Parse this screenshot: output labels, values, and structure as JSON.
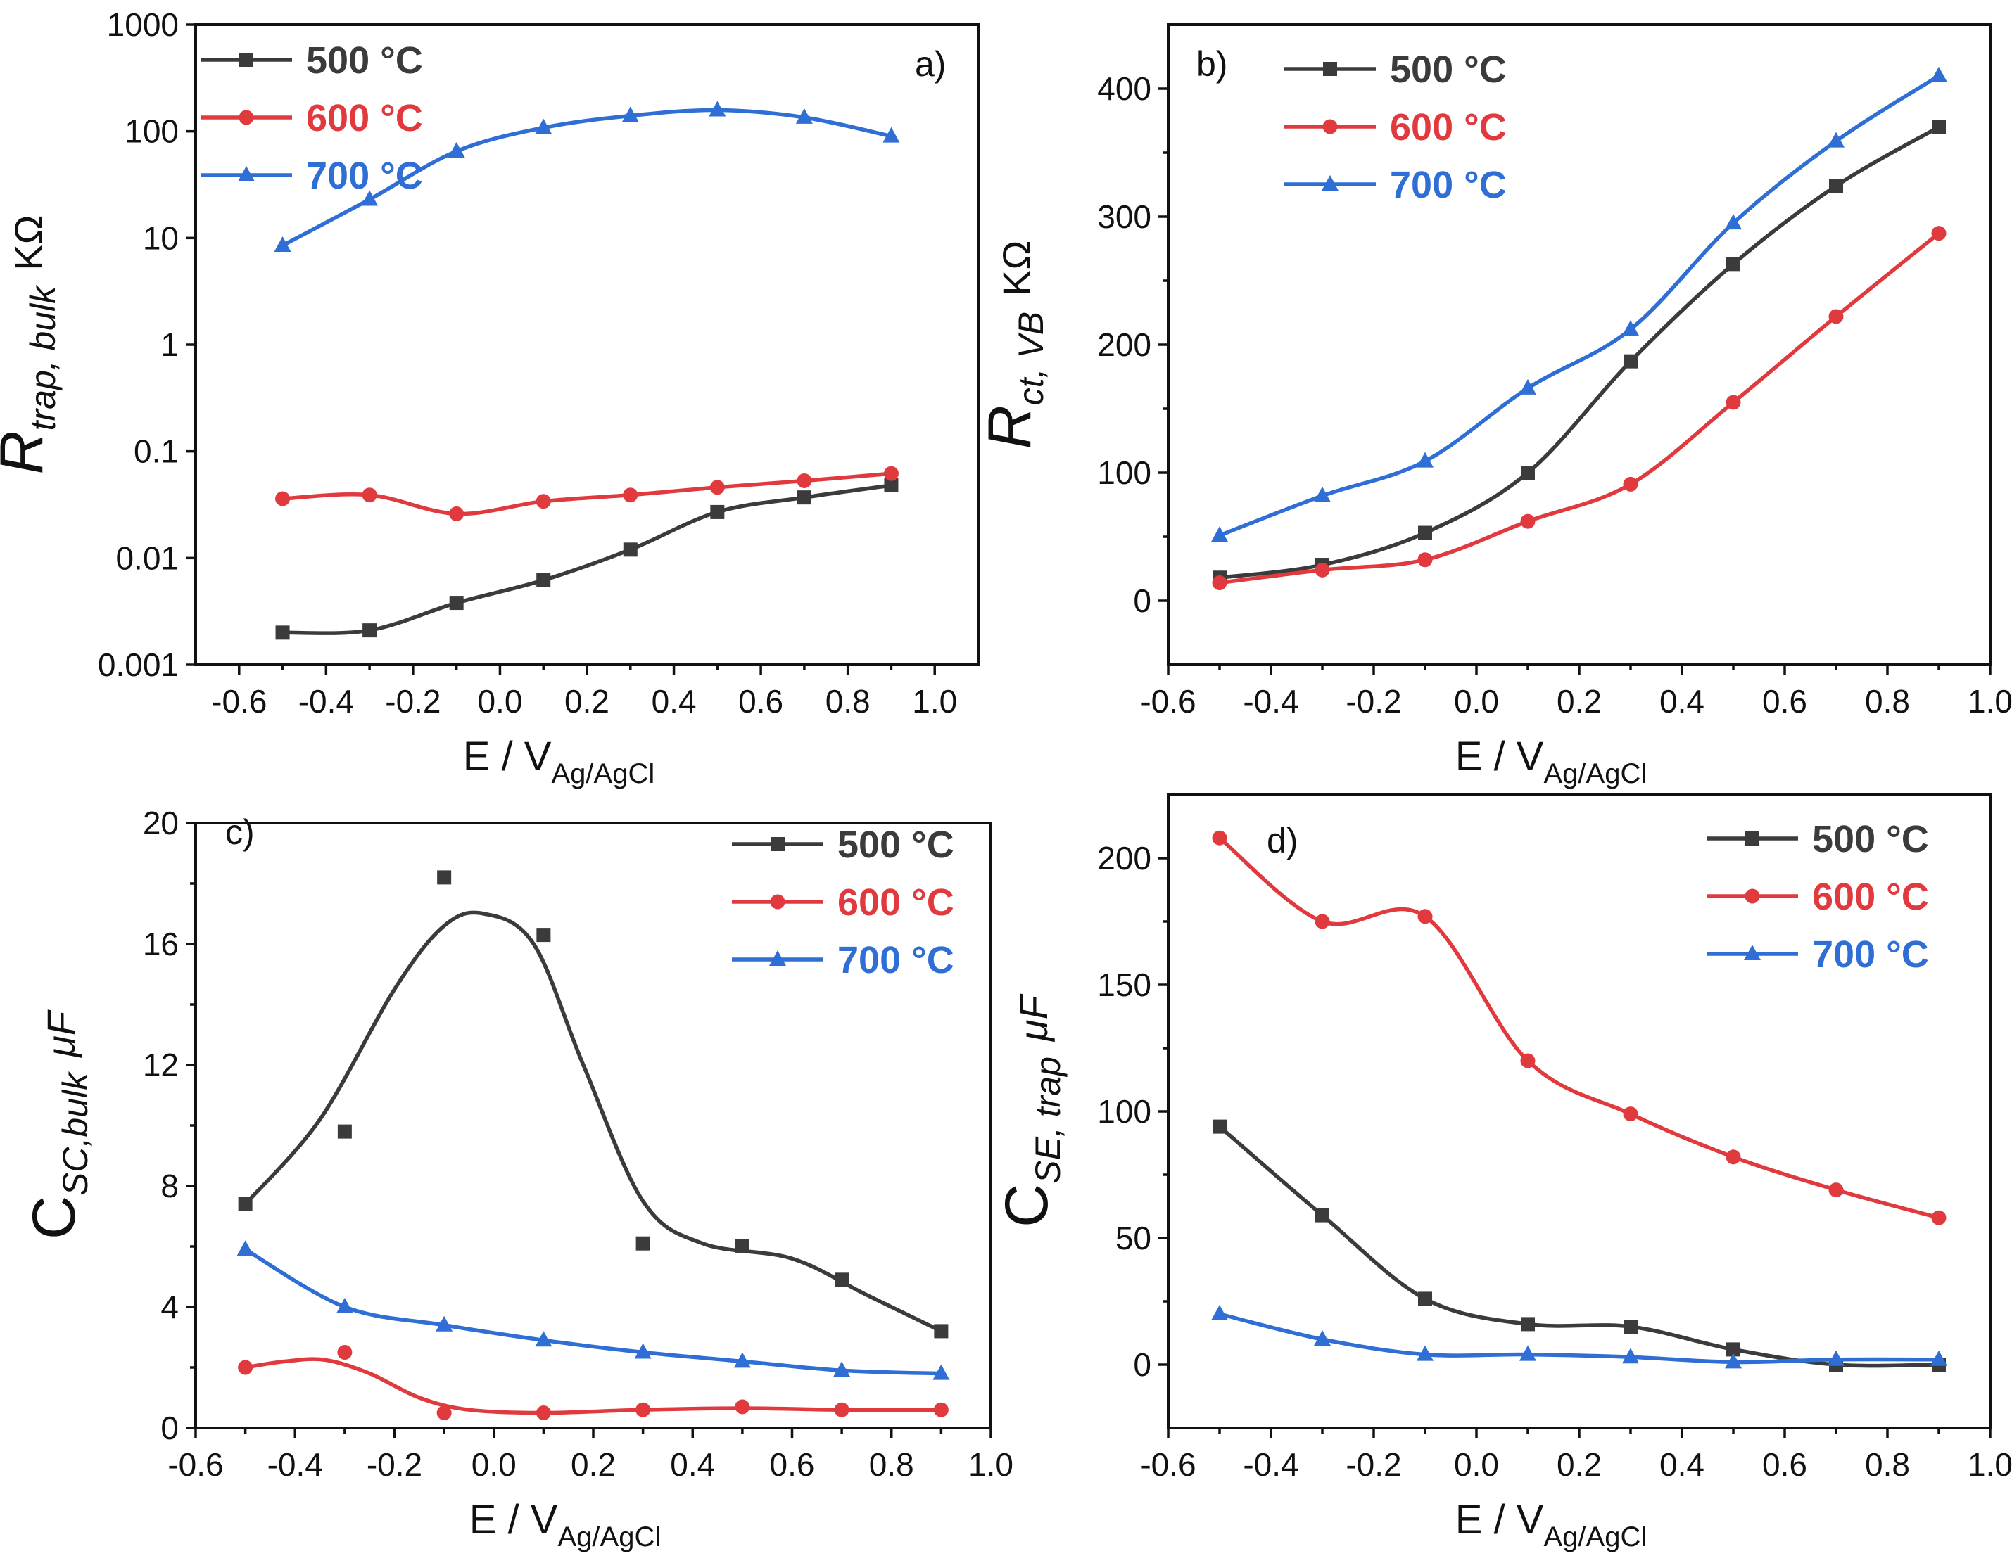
{
  "colors": {
    "s500": "#3b3b3b",
    "s600": "#e03a3e",
    "s700": "#2f6ed4",
    "axis": "#111111"
  },
  "legend_labels": {
    "s500": "500 °C",
    "s600": "600 °C",
    "s700": "700 °C"
  },
  "x_axis_label": {
    "main": "E / V",
    "sub": "Ag/AgCl"
  },
  "chart_data": [
    {
      "type": "line",
      "panel": "a)",
      "yscale": "log",
      "ylabel": {
        "main": "R",
        "sub": "trap, bulk",
        "unit": "KΩ"
      },
      "xlabel": "E / VAg/AgCl",
      "xlim": [
        -0.7,
        1.1
      ],
      "ylim": [
        0.001,
        1000
      ],
      "x_ticks": [
        -0.6,
        -0.4,
        -0.2,
        0.0,
        0.2,
        0.4,
        0.6,
        0.8,
        1.0
      ],
      "x_tick_labels": [
        "-0.6",
        "-0.4",
        "-0.2",
        "0.0",
        "0.2",
        "0.4",
        "0.6",
        "0.8",
        "1.0"
      ],
      "y_ticks": [
        0.001,
        0.01,
        0.1,
        1,
        10,
        100,
        1000
      ],
      "y_tick_labels": [
        "0.001",
        "0.01",
        "0.1",
        "1",
        "10",
        "100",
        "1000"
      ],
      "legend_position": "top-left",
      "series": [
        {
          "key": "s500",
          "name": "500 °C",
          "marker": "square",
          "x": [
            -0.5,
            -0.3,
            -0.1,
            0.1,
            0.3,
            0.5,
            0.7,
            0.9
          ],
          "y": [
            0.002,
            0.0021,
            0.0038,
            0.0062,
            0.012,
            0.027,
            0.037,
            0.048
          ]
        },
        {
          "key": "s600",
          "name": "600 °C",
          "marker": "circle",
          "x": [
            -0.5,
            -0.3,
            -0.1,
            0.1,
            0.3,
            0.5,
            0.7,
            0.9
          ],
          "y": [
            0.036,
            0.039,
            0.026,
            0.034,
            0.039,
            0.046,
            0.053,
            0.062
          ]
        },
        {
          "key": "s700",
          "name": "700 °C",
          "marker": "triangle",
          "x": [
            -0.5,
            -0.3,
            -0.1,
            0.1,
            0.3,
            0.5,
            0.7,
            0.9
          ],
          "y": [
            8.5,
            23,
            65,
            108,
            140,
            158,
            135,
            90
          ]
        }
      ]
    },
    {
      "type": "line",
      "panel": "b)",
      "yscale": "linear",
      "ylabel": {
        "main": "R",
        "sub": "ct, VB",
        "unit": "KΩ"
      },
      "xlabel": "E / VAg/AgCl",
      "xlim": [
        -0.6,
        1.0
      ],
      "ylim": [
        -50,
        450
      ],
      "x_ticks": [
        -0.6,
        -0.4,
        -0.2,
        0.0,
        0.2,
        0.4,
        0.6,
        0.8,
        1.0
      ],
      "x_tick_labels": [
        "-0.6",
        "-0.4",
        "-0.2",
        "0.0",
        "0.2",
        "0.4",
        "0.6",
        "0.8",
        "1.0"
      ],
      "y_ticks": [
        0,
        100,
        200,
        300,
        400
      ],
      "y_tick_labels": [
        "0",
        "100",
        "200",
        "300",
        "400"
      ],
      "legend_position": "top-left",
      "series": [
        {
          "key": "s500",
          "name": "500 °C",
          "marker": "square",
          "x": [
            -0.5,
            -0.3,
            -0.1,
            0.1,
            0.3,
            0.5,
            0.7,
            0.9
          ],
          "y": [
            18,
            28,
            53,
            100,
            187,
            263,
            324,
            370
          ]
        },
        {
          "key": "s600",
          "name": "600 °C",
          "marker": "circle",
          "x": [
            -0.5,
            -0.3,
            -0.1,
            0.1,
            0.3,
            0.5,
            0.7,
            0.9
          ],
          "y": [
            14,
            24,
            32,
            62,
            91,
            155,
            222,
            287
          ]
        },
        {
          "key": "s700",
          "name": "700 °C",
          "marker": "triangle",
          "x": [
            -0.5,
            -0.3,
            -0.1,
            0.1,
            0.3,
            0.5,
            0.7,
            0.9
          ],
          "y": [
            51,
            82,
            109,
            166,
            212,
            295,
            359,
            410
          ]
        }
      ]
    },
    {
      "type": "line",
      "panel": "c)",
      "yscale": "linear",
      "ylabel": {
        "main": "C",
        "sub": "SC,bulk",
        "unit": "μF"
      },
      "xlabel": "E / VAg/AgCl",
      "xlim": [
        -0.6,
        1.0
      ],
      "ylim": [
        0,
        20
      ],
      "x_ticks": [
        -0.6,
        -0.4,
        -0.2,
        0.0,
        0.2,
        0.4,
        0.6,
        0.8,
        1.0
      ],
      "x_tick_labels": [
        "-0.6",
        "-0.4",
        "-0.2",
        "0.0",
        "0.2",
        "0.4",
        "0.6",
        "0.8",
        "1.0"
      ],
      "y_ticks": [
        0,
        4,
        8,
        12,
        16,
        20
      ],
      "y_tick_labels": [
        "0",
        "4",
        "8",
        "12",
        "16",
        "20"
      ],
      "legend_position": "top-right",
      "series": [
        {
          "key": "s500",
          "name": "500 °C",
          "marker": "square",
          "x": [
            -0.5,
            -0.3,
            -0.1,
            0.1,
            0.3,
            0.5,
            0.7,
            0.9
          ],
          "y": [
            7.4,
            9.8,
            18.2,
            16.3,
            6.1,
            6.0,
            4.9,
            3.2
          ],
          "fit": {
            "x": [
              -0.5,
              -0.35,
              -0.2,
              -0.1,
              -0.02,
              0.08,
              0.18,
              0.3,
              0.42,
              0.6,
              0.75,
              0.9
            ],
            "y": [
              7.4,
              10.2,
              14.5,
              16.6,
              17.0,
              16.0,
              12.0,
              7.5,
              6.1,
              5.6,
              4.4,
              3.2
            ]
          }
        },
        {
          "key": "s600",
          "name": "600 °C",
          "marker": "circle",
          "x": [
            -0.5,
            -0.3,
            -0.1,
            0.1,
            0.3,
            0.5,
            0.7,
            0.9
          ],
          "y": [
            2.0,
            2.5,
            0.5,
            0.5,
            0.6,
            0.7,
            0.6,
            0.6
          ],
          "fit": {
            "x": [
              -0.5,
              -0.42,
              -0.34,
              -0.25,
              -0.15,
              -0.05,
              0.1,
              0.3,
              0.5,
              0.7,
              0.9
            ],
            "y": [
              2.0,
              2.2,
              2.25,
              1.8,
              1.0,
              0.6,
              0.5,
              0.6,
              0.65,
              0.6,
              0.6
            ]
          }
        },
        {
          "key": "s700",
          "name": "700 °C",
          "marker": "triangle",
          "x": [
            -0.5,
            -0.3,
            -0.1,
            0.1,
            0.3,
            0.5,
            0.7,
            0.9
          ],
          "y": [
            5.9,
            4.0,
            3.4,
            2.9,
            2.5,
            2.2,
            1.9,
            1.8
          ]
        }
      ]
    },
    {
      "type": "line",
      "panel": "d)",
      "yscale": "linear",
      "ylabel": {
        "main": "C",
        "sub": "SE, trap",
        "unit": "μF"
      },
      "xlabel": "E / VAg/AgCl",
      "xlim": [
        -0.6,
        1.0
      ],
      "ylim": [
        -25,
        225
      ],
      "x_ticks": [
        -0.6,
        -0.4,
        -0.2,
        0.0,
        0.2,
        0.4,
        0.6,
        0.8,
        1.0
      ],
      "x_tick_labels": [
        "-0.6",
        "-0.4",
        "-0.2",
        "0.0",
        "0.2",
        "0.4",
        "0.6",
        "0.8",
        "1.0"
      ],
      "y_ticks": [
        0,
        50,
        100,
        150,
        200
      ],
      "y_tick_labels": [
        "0",
        "50",
        "100",
        "150",
        "200"
      ],
      "legend_position": "top-right",
      "series": [
        {
          "key": "s500",
          "name": "500 °C",
          "marker": "square",
          "x": [
            -0.5,
            -0.3,
            -0.1,
            0.1,
            0.3,
            0.5,
            0.7,
            0.9
          ],
          "y": [
            94,
            59,
            26,
            16,
            15,
            6,
            0,
            0
          ]
        },
        {
          "key": "s600",
          "name": "600 °C",
          "marker": "circle",
          "x": [
            -0.5,
            -0.3,
            -0.1,
            0.1,
            0.3,
            0.5,
            0.7,
            0.9
          ],
          "y": [
            208,
            175,
            177,
            120,
            99,
            82,
            69,
            58
          ]
        },
        {
          "key": "s700",
          "name": "700 °C",
          "marker": "triangle",
          "x": [
            -0.5,
            -0.3,
            -0.1,
            0.1,
            0.3,
            0.5,
            0.7,
            0.9
          ],
          "y": [
            20,
            10,
            4,
            4,
            3,
            1,
            2,
            2
          ]
        }
      ]
    }
  ]
}
